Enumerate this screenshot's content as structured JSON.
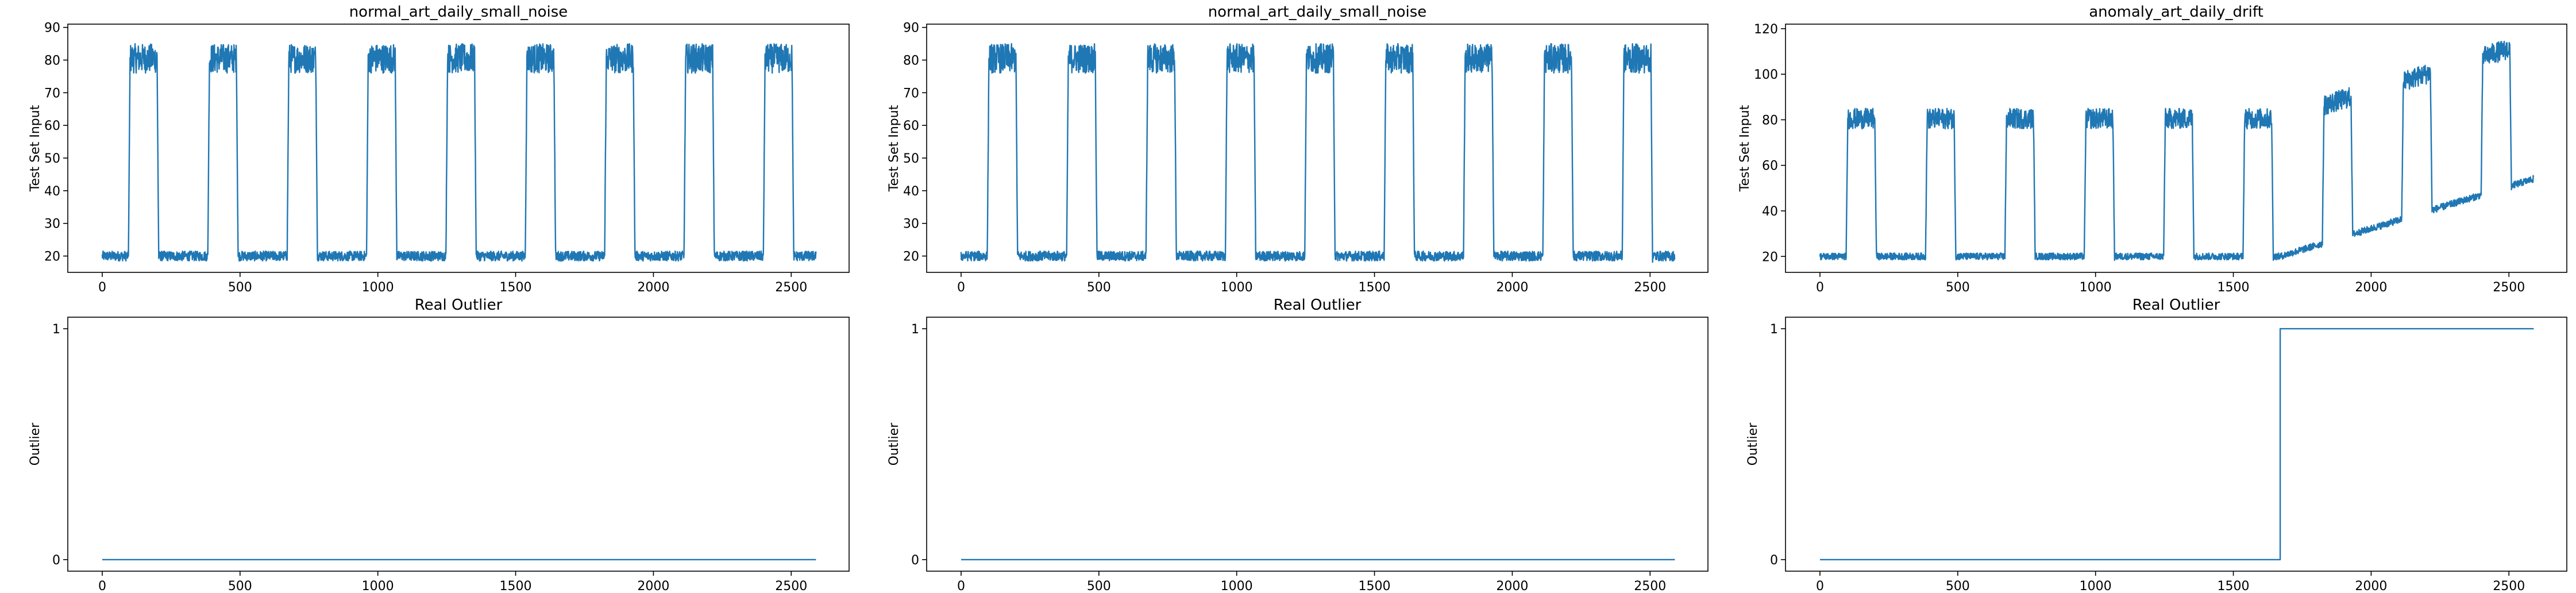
{
  "chart_data": [
    {
      "type": "line",
      "title": "normal_art_daily_small_noise",
      "xlabel": "",
      "ylabel": "Test Set Input",
      "xlim": [
        -125,
        2710
      ],
      "ylim": [
        15,
        91
      ],
      "xticks": [
        0,
        500,
        1000,
        1500,
        2000,
        2500
      ],
      "yticks": [
        20,
        30,
        40,
        50,
        60,
        70,
        80,
        90
      ],
      "grid": false,
      "color": "#1f77b4",
      "signal": {
        "length": 2590,
        "period": 288,
        "high_start": 96,
        "high_end": 200,
        "base_level": 20,
        "high_level": 80,
        "noise": 3,
        "drift_start": null,
        "drift_offset": 0
      }
    },
    {
      "type": "line",
      "title": "normal_art_daily_small_noise",
      "xlabel": "",
      "ylabel": "Test Set Input",
      "xlim": [
        -125,
        2710
      ],
      "ylim": [
        15,
        91
      ],
      "xticks": [
        0,
        500,
        1000,
        1500,
        2000,
        2500
      ],
      "yticks": [
        20,
        30,
        40,
        50,
        60,
        70,
        80,
        90
      ],
      "grid": false,
      "color": "#1f77b4",
      "signal": {
        "length": 2590,
        "period": 288,
        "high_start": 96,
        "high_end": 200,
        "base_level": 20,
        "high_level": 80,
        "noise": 3,
        "drift_start": null,
        "drift_offset": 0
      }
    },
    {
      "type": "line",
      "title": "anomaly_art_daily_drift",
      "xlabel": "",
      "ylabel": "Test Set Input",
      "xlim": [
        -125,
        2710
      ],
      "ylim": [
        13,
        122
      ],
      "xticks": [
        0,
        500,
        1000,
        1500,
        2000,
        2500
      ],
      "yticks": [
        20,
        40,
        60,
        80,
        100,
        120
      ],
      "grid": false,
      "color": "#1f77b4",
      "signal": {
        "length": 2590,
        "period": 288,
        "high_start": 96,
        "high_end": 200,
        "base_level": 20,
        "high_level": 80,
        "noise": 3,
        "drift_start": 1670,
        "drift_offset": 0.037
      }
    },
    {
      "type": "line",
      "title": "Real Outlier",
      "xlabel": "",
      "ylabel": "Outlier",
      "xlim": [
        -125,
        2710
      ],
      "ylim": [
        -0.05,
        1.05
      ],
      "xticks": [
        0,
        500,
        1000,
        1500,
        2000,
        2500
      ],
      "yticks": [
        0,
        1
      ],
      "grid": false,
      "color": "#1f77b4",
      "steps": [
        [
          0,
          0
        ],
        [
          2590,
          0
        ]
      ]
    },
    {
      "type": "line",
      "title": "Real Outlier",
      "xlabel": "",
      "ylabel": "Outlier",
      "xlim": [
        -125,
        2710
      ],
      "ylim": [
        -0.05,
        1.05
      ],
      "xticks": [
        0,
        500,
        1000,
        1500,
        2000,
        2500
      ],
      "yticks": [
        0,
        1
      ],
      "grid": false,
      "color": "#1f77b4",
      "steps": [
        [
          0,
          0
        ],
        [
          2590,
          0
        ]
      ]
    },
    {
      "type": "line",
      "title": "Real Outlier",
      "xlabel": "",
      "ylabel": "Outlier",
      "xlim": [
        -125,
        2710
      ],
      "ylim": [
        -0.05,
        1.05
      ],
      "xticks": [
        0,
        500,
        1000,
        1500,
        2000,
        2500
      ],
      "yticks": [
        0,
        1
      ],
      "grid": false,
      "color": "#1f77b4",
      "steps": [
        [
          0,
          0
        ],
        [
          1670,
          0
        ],
        [
          1670,
          1
        ],
        [
          2590,
          1
        ]
      ]
    }
  ]
}
